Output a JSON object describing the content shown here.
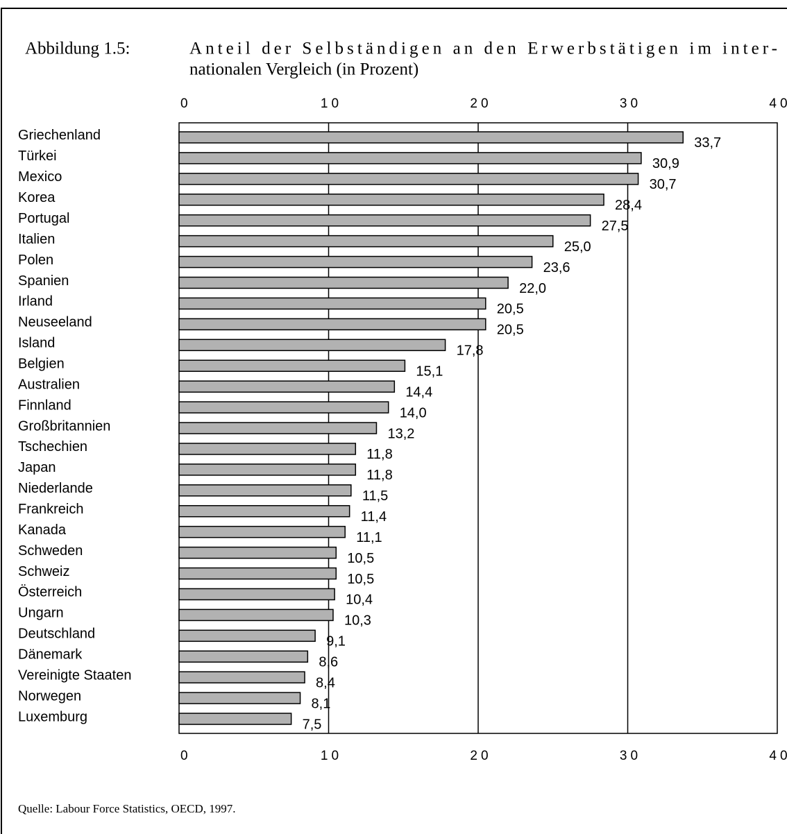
{
  "chart_data": {
    "type": "bar",
    "orientation": "horizontal",
    "figure_label": "Abbildung 1.5:",
    "title_lines": [
      "Anteil der Selbständigen an den Erwerbstätigen im inter-",
      "nationalen Vergleich (in Prozent)"
    ],
    "categories": [
      "Griechenland",
      "Türkei",
      "Mexico",
      "Korea",
      "Portugal",
      "Italien",
      "Polen",
      "Spanien",
      "Irland",
      "Neuseeland",
      "Island",
      "Belgien",
      "Australien",
      "Finnland",
      "Großbritannien",
      "Tschechien",
      "Japan",
      "Niederlande",
      "Frankreich",
      "Kanada",
      "Schweden",
      "Schweiz",
      "Österreich",
      "Ungarn",
      "Deutschland",
      "Dänemark",
      "Vereinigte Staaten",
      "Norwegen",
      "Luxemburg"
    ],
    "values": [
      33.7,
      30.9,
      30.7,
      28.4,
      27.5,
      25.0,
      23.6,
      22.0,
      20.5,
      20.5,
      17.8,
      15.1,
      14.4,
      14.0,
      13.2,
      11.8,
      11.8,
      11.5,
      11.4,
      11.1,
      10.5,
      10.5,
      10.4,
      10.3,
      9.1,
      8.6,
      8.4,
      8.1,
      7.5
    ],
    "value_labels": [
      "33,7",
      "30,9",
      "30,7",
      "28,4",
      "27,5",
      "25,0",
      "23,6",
      "22,0",
      "20,5",
      "20,5",
      "17,8",
      "15,1",
      "14,4",
      "14,0",
      "13,2",
      "11,8",
      "11,8",
      "11,5",
      "11,4",
      "11,1",
      "10,5",
      "10,5",
      "10,4",
      "10,3",
      "9,1",
      "8,6",
      "8,4",
      "8,1",
      "7,5"
    ],
    "color": "#b2b2b2",
    "xlim": [
      0,
      40
    ],
    "xticks": [
      0,
      10,
      20,
      30,
      40
    ],
    "grid": true,
    "source": "Quelle: Labour Force Statistics, OECD, 1997."
  }
}
